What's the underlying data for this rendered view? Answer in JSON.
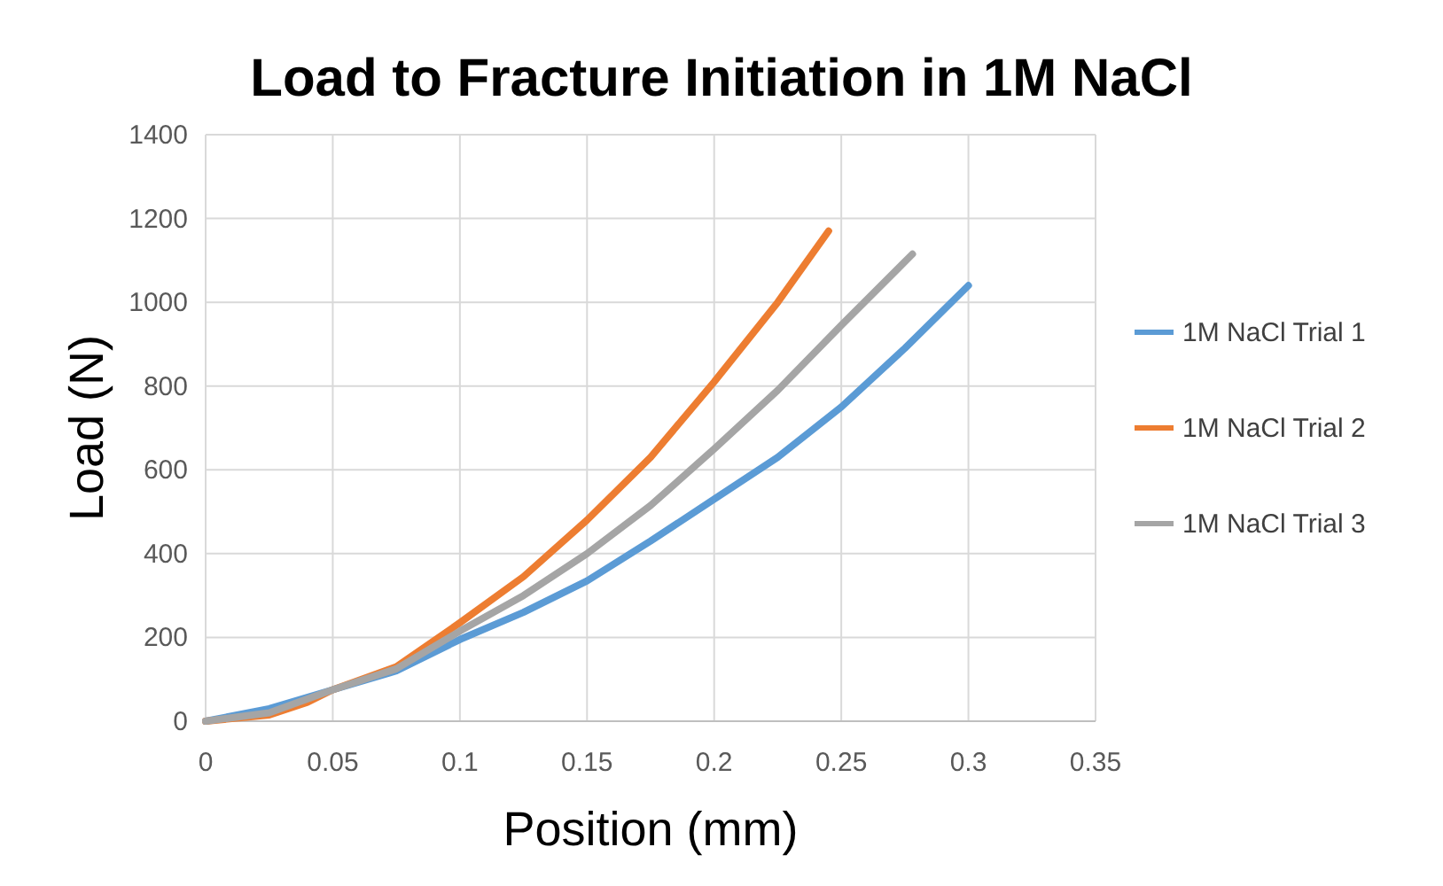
{
  "chart_data": {
    "type": "line",
    "title": "Load to Fracture Initiation in 1M NaCl",
    "xlabel": "Position (mm)",
    "ylabel": "Load (N)",
    "xlim": [
      0,
      0.35
    ],
    "xticks": [
      0,
      0.05,
      0.1,
      0.15,
      0.2,
      0.25,
      0.3,
      0.35
    ],
    "ylim": [
      0,
      1400
    ],
    "yticks": [
      0,
      200,
      400,
      600,
      800,
      1000,
      1200,
      1400
    ],
    "grid": true,
    "legend": "right",
    "marker": "none",
    "line_style": "solid",
    "series": [
      {
        "name": "1M NaCl Trial 1",
        "color": "#5b9bd5",
        "x": [
          0,
          0.025,
          0.05,
          0.075,
          0.1,
          0.125,
          0.15,
          0.175,
          0.2,
          0.225,
          0.25,
          0.275,
          0.3
        ],
        "values": [
          0,
          30,
          75,
          120,
          195,
          260,
          335,
          430,
          530,
          630,
          750,
          890,
          1040
        ]
      },
      {
        "name": "1M NaCl Trial 2",
        "color": "#ed7d31",
        "x": [
          0,
          0.025,
          0.04,
          0.05,
          0.075,
          0.1,
          0.125,
          0.15,
          0.175,
          0.2,
          0.225,
          0.245
        ],
        "values": [
          0,
          15,
          45,
          75,
          130,
          235,
          345,
          480,
          630,
          810,
          1000,
          1170
        ]
      },
      {
        "name": "1M NaCl Trial 3",
        "color": "#a5a5a5",
        "x": [
          0,
          0.025,
          0.05,
          0.075,
          0.1,
          0.125,
          0.15,
          0.175,
          0.2,
          0.225,
          0.25,
          0.278
        ],
        "values": [
          0,
          20,
          75,
          125,
          215,
          300,
          400,
          515,
          650,
          790,
          945,
          1115
        ]
      }
    ]
  }
}
